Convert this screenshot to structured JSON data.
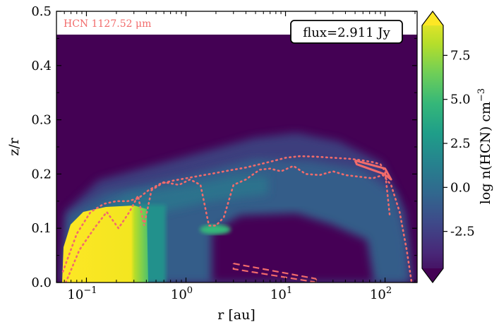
{
  "chart_data": {
    "type": "heatmap",
    "xlabel": "r [au]",
    "ylabel": "z/r",
    "xscale": "log",
    "xlim": [
      0.05,
      210
    ],
    "ylim": [
      0.0,
      0.5
    ],
    "xticks": [
      {
        "value": 0.1,
        "label": "10",
        "exp": "−1"
      },
      {
        "value": 1,
        "label": "10",
        "exp": "0"
      },
      {
        "value": 10,
        "label": "10",
        "exp": "1"
      },
      {
        "value": 100,
        "label": "10",
        "exp": "2"
      }
    ],
    "yticks": [
      {
        "value": 0.0,
        "label": "0.0"
      },
      {
        "value": 0.1,
        "label": "0.1"
      },
      {
        "value": 0.2,
        "label": "0.2"
      },
      {
        "value": 0.3,
        "label": "0.3"
      },
      {
        "value": 0.4,
        "label": "0.4"
      },
      {
        "value": 0.5,
        "label": "0.5"
      }
    ],
    "line_label": "HCN 1127.52 μm",
    "flux_label": "flux=2.911 Jy",
    "colorbar": {
      "label": "log n(HCN) cm",
      "label_exp": "−3",
      "extend": "both",
      "range": [
        -4.6,
        9.2
      ],
      "ticks": [
        {
          "value": 7.5,
          "label": "7.5"
        },
        {
          "value": 5.0,
          "label": "5.0"
        },
        {
          "value": 2.5,
          "label": "2.5"
        },
        {
          "value": 0.0,
          "label": "0.0"
        },
        {
          "value": -2.5,
          "label": "-2.5"
        }
      ],
      "colors": [
        "#440154",
        "#482878",
        "#3e4989",
        "#31688e",
        "#26828e",
        "#1f9e89",
        "#35b779",
        "#6ece58",
        "#b5de2b",
        "#fde725"
      ]
    },
    "colors": {
      "background": "#440154",
      "high": "#fde725",
      "mid": "#2b7d8e",
      "contour": "#f26b6b"
    },
    "dotted_upper": {
      "r": [
        0.058,
        0.08,
        0.11,
        0.15,
        0.2,
        0.26,
        0.33,
        0.42,
        0.55,
        0.75,
        1.0,
        1.4,
        2.0,
        2.8,
        4.0,
        5.5,
        7.5,
        10,
        14,
        20,
        30,
        45,
        60,
        75,
        90,
        100,
        112
      ],
      "zr": [
        0.02,
        0.09,
        0.13,
        0.145,
        0.15,
        0.15,
        0.155,
        0.17,
        0.182,
        0.188,
        0.192,
        0.197,
        0.202,
        0.207,
        0.212,
        0.218,
        0.224,
        0.23,
        0.233,
        0.232,
        0.23,
        0.228,
        0.225,
        0.222,
        0.218,
        0.205,
        0.12
      ]
    },
    "dotted_lower": {
      "r": [
        0.062,
        0.085,
        0.12,
        0.16,
        0.21,
        0.27,
        0.33,
        0.38,
        0.45,
        0.6,
        0.85,
        1.1,
        1.4,
        1.7,
        2.0,
        2.4,
        3.0,
        4.0,
        5.5,
        7.0,
        9.0,
        12,
        16,
        22,
        30,
        40,
        55,
        75,
        95,
        115,
        140,
        165,
        185
      ],
      "zr": [
        0.0,
        0.06,
        0.1,
        0.13,
        0.1,
        0.13,
        0.16,
        0.105,
        0.17,
        0.185,
        0.18,
        0.19,
        0.18,
        0.105,
        0.105,
        0.12,
        0.18,
        0.19,
        0.208,
        0.21,
        0.205,
        0.215,
        0.2,
        0.198,
        0.205,
        0.198,
        0.195,
        0.192,
        0.198,
        0.18,
        0.13,
        0.06,
        0.0
      ]
    },
    "solid_box": {
      "r": [
        50,
        100,
        115,
        98,
        52,
        50
      ],
      "zr": [
        0.225,
        0.21,
        0.19,
        0.2,
        0.218,
        0.225
      ]
    },
    "dashed_box": {
      "r": [
        3,
        20,
        21,
        3,
        3
      ],
      "zr": [
        0.035,
        0.007,
        0.0,
        0.025,
        0.035
      ]
    }
  }
}
